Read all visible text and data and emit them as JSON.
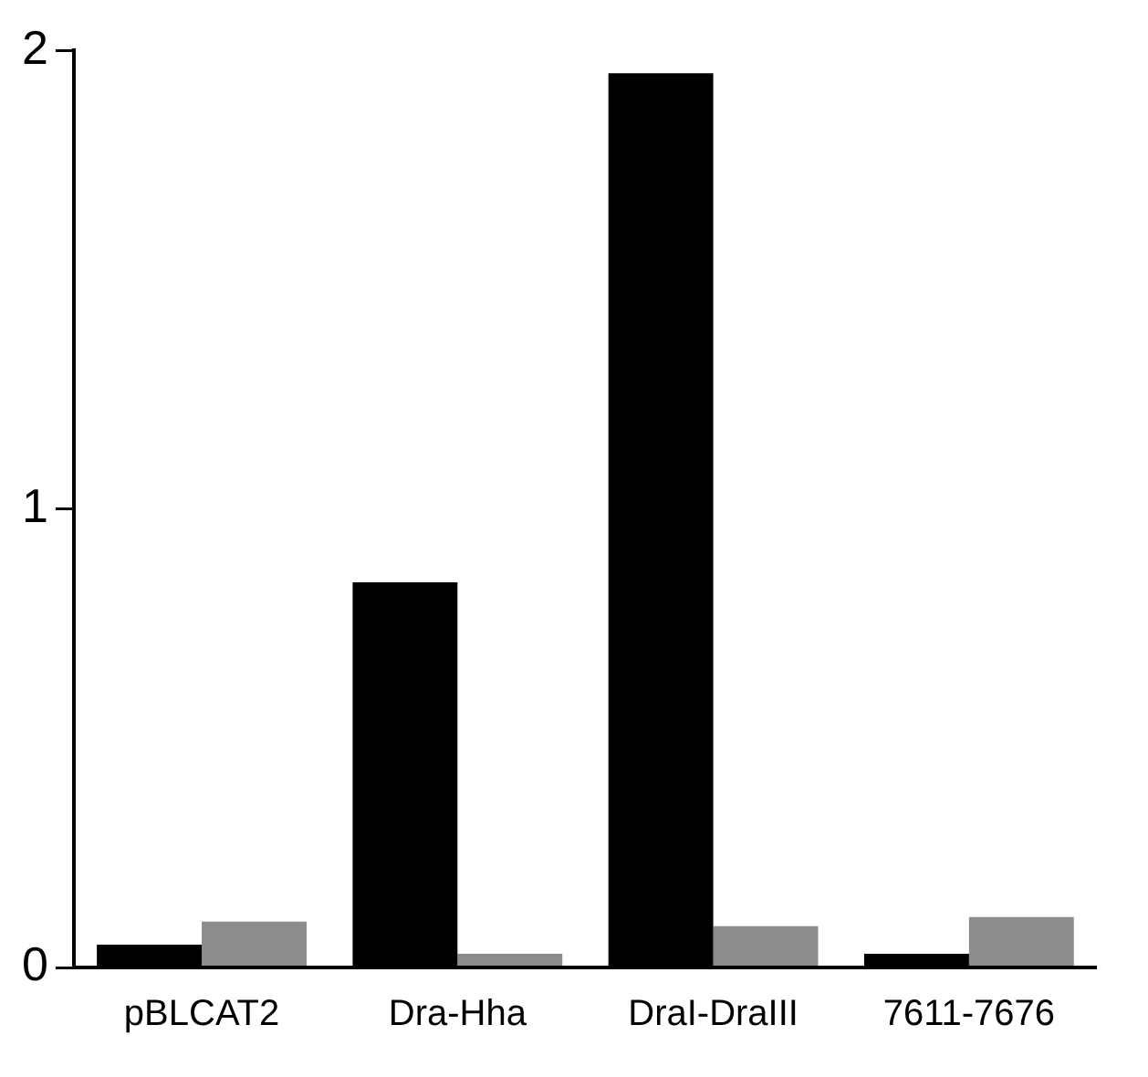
{
  "chart_data": {
    "type": "bar",
    "categories": [
      "pBLCAT2",
      "Dra-Hha",
      "DraI-DraIII",
      "7611-7676"
    ],
    "series": [
      {
        "color": "#000000",
        "values": [
          0.05,
          0.84,
          1.95,
          0.03
        ]
      },
      {
        "color": "#8c8c8c",
        "values": [
          0.1,
          0.03,
          0.09,
          0.11
        ]
      }
    ],
    "ylim": [
      0,
      2
    ],
    "yticks": [
      0,
      1,
      2
    ],
    "grid": false,
    "legend": false
  }
}
